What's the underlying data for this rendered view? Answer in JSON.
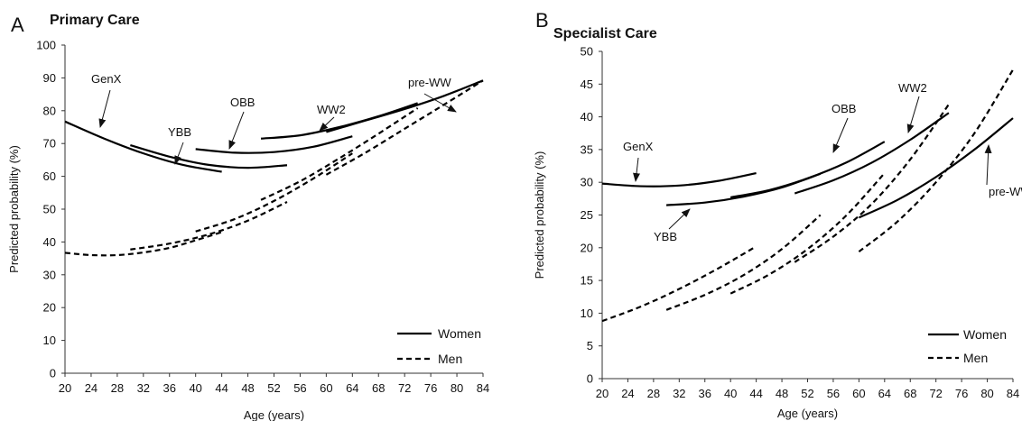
{
  "chart_data": [
    {
      "type": "line",
      "panel_label": "A",
      "title": "Primary Care",
      "xlabel": "Age (years)",
      "ylabel": "Predicted probability (%)",
      "xlim": [
        20,
        84
      ],
      "ylim": [
        0,
        100
      ],
      "xticks": [
        20,
        24,
        28,
        32,
        36,
        40,
        44,
        48,
        52,
        56,
        60,
        64,
        68,
        72,
        76,
        80,
        84
      ],
      "yticks": [
        0,
        10,
        20,
        30,
        40,
        50,
        60,
        70,
        80,
        90,
        100
      ],
      "legend_position": "bottom-right",
      "legend": [
        {
          "label": "Women",
          "style": "solid"
        },
        {
          "label": "Men",
          "style": "dashed"
        }
      ],
      "series": [
        {
          "group": "Women",
          "cohort": "GenX",
          "style": "solid",
          "x": [
            20,
            26,
            32,
            38,
            44
          ],
          "y": [
            76.7,
            71.5,
            67.0,
            63.5,
            61.4
          ]
        },
        {
          "group": "Women",
          "cohort": "YBB",
          "style": "solid",
          "x": [
            30,
            36,
            42,
            48,
            54
          ],
          "y": [
            69.5,
            66.0,
            63.5,
            62.6,
            63.4
          ]
        },
        {
          "group": "Women",
          "cohort": "OBB",
          "style": "solid",
          "x": [
            40,
            46,
            52,
            58,
            64
          ],
          "y": [
            68.3,
            67.2,
            67.4,
            69.0,
            72.2
          ]
        },
        {
          "group": "Women",
          "cohort": "WW2",
          "style": "solid",
          "x": [
            50,
            56,
            62,
            68,
            74
          ],
          "y": [
            71.5,
            72.5,
            75.0,
            78.3,
            82.3
          ]
        },
        {
          "group": "Women",
          "cohort": "pre-WW",
          "style": "solid",
          "x": [
            60,
            66,
            72,
            78,
            84
          ],
          "y": [
            73.5,
            77.0,
            80.5,
            84.5,
            89.2
          ]
        },
        {
          "group": "Men",
          "cohort": "GenX",
          "style": "dashed",
          "x": [
            20,
            24,
            28,
            32,
            36,
            40,
            44
          ],
          "y": [
            36.7,
            36.0,
            36.0,
            36.8,
            38.2,
            40.5,
            43.0
          ]
        },
        {
          "group": "Men",
          "cohort": "YBB",
          "style": "dashed",
          "x": [
            30,
            36,
            42,
            48,
            54
          ],
          "y": [
            37.7,
            39.5,
            42.3,
            46.5,
            52.2
          ]
        },
        {
          "group": "Men",
          "cohort": "OBB",
          "style": "dashed",
          "x": [
            40,
            46,
            52,
            58,
            64
          ],
          "y": [
            43.2,
            47.0,
            52.5,
            59.3,
            67.0
          ]
        },
        {
          "group": "Men",
          "cohort": "WW2",
          "style": "dashed",
          "x": [
            50,
            56,
            62,
            68,
            74
          ],
          "y": [
            52.8,
            58.5,
            65.5,
            73.0,
            80.8
          ]
        },
        {
          "group": "Men",
          "cohort": "pre-WW",
          "style": "dashed",
          "x": [
            60,
            66,
            72,
            78,
            84
          ],
          "y": [
            60.5,
            67.2,
            74.5,
            81.8,
            89.2
          ]
        }
      ],
      "annotations": [
        {
          "text": "GenX",
          "x": 26,
          "y": 72.5
        },
        {
          "text": "YBB",
          "x": 34,
          "y": 66.5
        },
        {
          "text": "OBB",
          "x": 44.5,
          "y": 66.8
        },
        {
          "text": "WW2",
          "x": 59.5,
          "y": 73.5
        },
        {
          "text": "pre-WW",
          "x": 81,
          "y": 86.5
        }
      ]
    },
    {
      "type": "line",
      "panel_label": "B",
      "title": "Specialist Care",
      "xlabel": "Age (years)",
      "ylabel": "Predicted probability (%)",
      "xlim": [
        20,
        84
      ],
      "ylim": [
        0,
        50
      ],
      "xticks": [
        20,
        24,
        28,
        32,
        36,
        40,
        44,
        48,
        52,
        56,
        60,
        64,
        68,
        72,
        76,
        80,
        84
      ],
      "yticks": [
        0,
        5,
        10,
        15,
        20,
        25,
        30,
        35,
        40,
        45,
        50
      ],
      "legend_position": "bottom-right",
      "legend": [
        {
          "label": "Women",
          "style": "solid"
        },
        {
          "label": "Men",
          "style": "dashed"
        }
      ],
      "series": [
        {
          "group": "Women",
          "cohort": "GenX",
          "style": "solid",
          "x": [
            20,
            26,
            32,
            38,
            44
          ],
          "y": [
            29.8,
            29.4,
            29.5,
            30.2,
            31.4
          ]
        },
        {
          "group": "Women",
          "cohort": "YBB",
          "style": "solid",
          "x": [
            30,
            36,
            42,
            48,
            54
          ],
          "y": [
            26.5,
            26.9,
            27.8,
            29.2,
            31.3
          ]
        },
        {
          "group": "Women",
          "cohort": "OBB",
          "style": "solid",
          "x": [
            40,
            46,
            52,
            58,
            64
          ],
          "y": [
            27.7,
            28.8,
            30.6,
            33.0,
            36.2
          ]
        },
        {
          "group": "Women",
          "cohort": "WW2",
          "style": "solid",
          "x": [
            50,
            56,
            62,
            68,
            74
          ],
          "y": [
            28.3,
            30.3,
            33.0,
            36.5,
            40.6
          ]
        },
        {
          "group": "Women",
          "cohort": "pre-WW",
          "style": "solid",
          "x": [
            60,
            66,
            72,
            78,
            84
          ],
          "y": [
            24.6,
            27.3,
            30.8,
            35.0,
            39.8
          ]
        },
        {
          "group": "Men",
          "cohort": "GenX",
          "style": "dashed",
          "x": [
            20,
            26,
            32,
            38,
            44
          ],
          "y": [
            8.8,
            11.0,
            13.7,
            16.8,
            20.2
          ]
        },
        {
          "group": "Men",
          "cohort": "YBB",
          "style": "dashed",
          "x": [
            30,
            36,
            42,
            48,
            54
          ],
          "y": [
            10.5,
            12.8,
            15.8,
            19.8,
            25.0
          ]
        },
        {
          "group": "Men",
          "cohort": "OBB",
          "style": "dashed",
          "x": [
            40,
            46,
            52,
            58,
            64
          ],
          "y": [
            13.0,
            15.9,
            19.8,
            24.9,
            31.4
          ]
        },
        {
          "group": "Men",
          "cohort": "WW2",
          "style": "dashed",
          "x": [
            50,
            56,
            62,
            68,
            74
          ],
          "y": [
            17.8,
            21.7,
            26.7,
            33.5,
            41.9
          ]
        },
        {
          "group": "Men",
          "cohort": "pre-WW",
          "style": "dashed",
          "x": [
            60,
            66,
            72,
            78,
            84
          ],
          "y": [
            19.4,
            24.0,
            30.0,
            37.5,
            47.2
          ]
        }
      ],
      "annotations": [
        {
          "text": "GenX",
          "x": 26.5,
          "y": 29.6
        },
        {
          "text": "YBB",
          "x": 32.5,
          "y": 26.8
        },
        {
          "text": "OBB",
          "x": 56.5,
          "y": 31.8
        },
        {
          "text": "WW2",
          "x": 68.5,
          "y": 37.0
        },
        {
          "text": "pre-WW",
          "x": 79.5,
          "y": 34.3
        }
      ]
    }
  ]
}
